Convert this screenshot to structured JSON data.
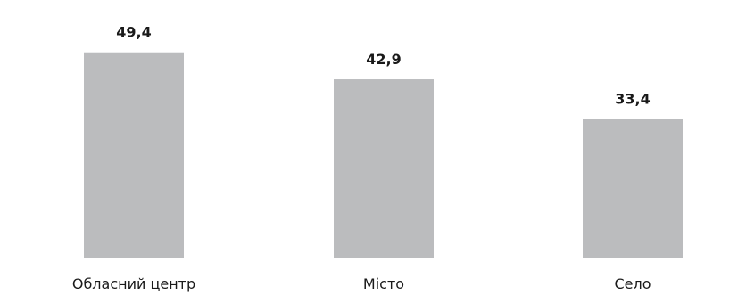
{
  "chart_data": {
    "type": "bar",
    "categories": [
      "Обласний центр",
      "Місто",
      "Село"
    ],
    "values": [
      49.4,
      42.9,
      33.4
    ],
    "value_labels": [
      "49,4",
      "42,9",
      "33,4"
    ],
    "title": "",
    "xlabel": "",
    "ylabel": "",
    "ylim": [
      0,
      62
    ],
    "grid": false,
    "legend": "none",
    "bar_color": "#bbbcbe",
    "axis_color": "#666666"
  }
}
